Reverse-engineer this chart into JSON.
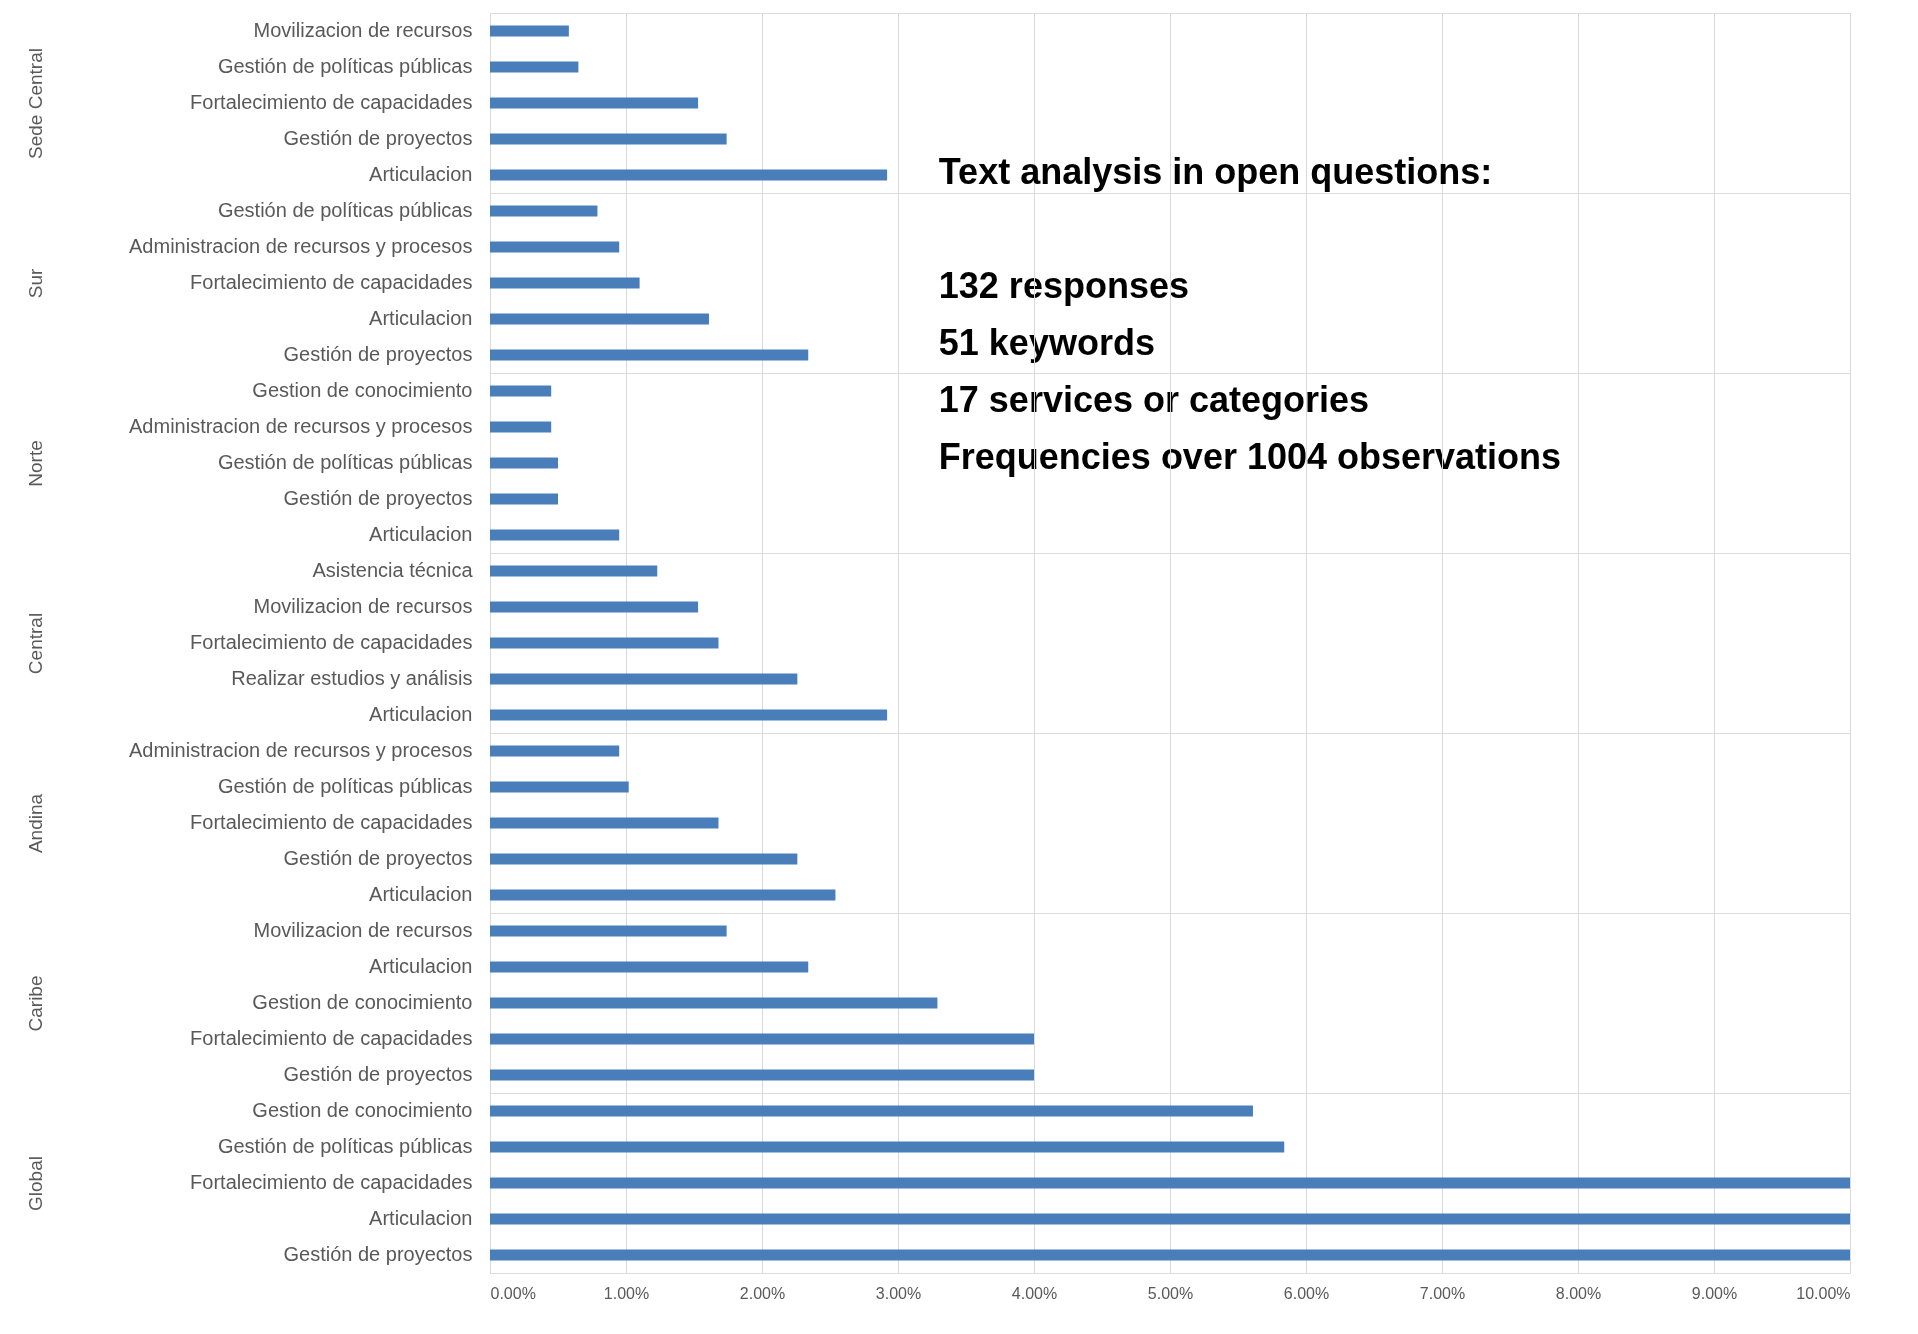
{
  "chart_data": [
    {
      "type": "bar",
      "orientation": "horizontal",
      "ylabel": "Sede Central",
      "categories": [
        "Movilizacion de recursos",
        "Gestión de políticas públicas",
        "Fortalecimiento de capacidades",
        "Gestión de proyectos",
        "Articulacion"
      ],
      "values": [
        0.58,
        0.65,
        1.53,
        1.74,
        2.92
      ],
      "color": "#4a7ebb",
      "xlim": [
        0,
        10
      ],
      "xticks": [
        {
          "value": 0,
          "label": null
        },
        {
          "value": 1,
          "label": null
        },
        {
          "value": 2,
          "label": null
        },
        {
          "value": 3,
          "label": null
        },
        {
          "value": 4,
          "label": null
        },
        {
          "value": 5,
          "label": null
        },
        {
          "value": 6,
          "label": null
        },
        {
          "value": 7,
          "label": null
        },
        {
          "value": 8,
          "label": null
        },
        {
          "value": 9,
          "label": null
        },
        {
          "value": 10,
          "label": null
        }
      ],
      "grid": "x",
      "tick_labels": "y",
      "annotations": [
        "Text analysis in open questions:",
        "132 responses",
        "51 keywords",
        "17 services or categories",
        "Frequencies over 1004 observations"
      ]
    },
    {
      "type": "bar",
      "orientation": "horizontal",
      "ylabel": "Sur",
      "categories": [
        "Gestión de políticas públicas",
        "Administracion de recursos y procesos",
        "Fortalecimiento de capacidades",
        "Articulacion",
        "Gestión de proyectos"
      ],
      "values": [
        0.79,
        0.95,
        1.1,
        1.61,
        2.34
      ],
      "color": "#4a7ebb",
      "xlim": [
        0,
        10
      ],
      "xticks": [
        {
          "value": 0,
          "label": null
        },
        {
          "value": 1,
          "label": null
        },
        {
          "value": 2,
          "label": null
        },
        {
          "value": 3,
          "label": null
        },
        {
          "value": 4,
          "label": null
        },
        {
          "value": 5,
          "label": null
        },
        {
          "value": 6,
          "label": null
        },
        {
          "value": 7,
          "label": null
        },
        {
          "value": 8,
          "label": null
        },
        {
          "value": 9,
          "label": null
        },
        {
          "value": 10,
          "label": null
        }
      ],
      "grid": "x",
      "tick_labels": "y"
    },
    {
      "type": "bar",
      "orientation": "horizontal",
      "ylabel": "Norte",
      "categories": [
        "Gestion de  conocimiento",
        "Administracion de recursos y procesos",
        "Gestión de políticas públicas",
        "Gestión de proyectos",
        "Articulacion"
      ],
      "values": [
        0.45,
        0.45,
        0.5,
        0.5,
        0.95
      ],
      "color": "#4a7ebb",
      "xlim": [
        0,
        10
      ],
      "xticks": [
        {
          "value": 0,
          "label": null
        },
        {
          "value": 1,
          "label": null
        },
        {
          "value": 2,
          "label": null
        },
        {
          "value": 3,
          "label": null
        },
        {
          "value": 4,
          "label": null
        },
        {
          "value": 5,
          "label": null
        },
        {
          "value": 6,
          "label": null
        },
        {
          "value": 7,
          "label": null
        },
        {
          "value": 8,
          "label": null
        },
        {
          "value": 9,
          "label": null
        },
        {
          "value": 10,
          "label": null
        }
      ],
      "grid": "x",
      "tick_labels": "y"
    },
    {
      "type": "bar",
      "orientation": "horizontal",
      "ylabel": "Central",
      "categories": [
        "Asistencia técnica",
        "Movilizacion de recursos",
        "Fortalecimiento de capacidades",
        "Realizar estudios y análisis",
        "Articulacion"
      ],
      "values": [
        1.23,
        1.53,
        1.68,
        2.26,
        2.92
      ],
      "color": "#4a7ebb",
      "xlim": [
        0,
        10
      ],
      "xticks": [
        {
          "value": 0,
          "label": null
        },
        {
          "value": 1,
          "label": null
        },
        {
          "value": 2,
          "label": null
        },
        {
          "value": 3,
          "label": null
        },
        {
          "value": 4,
          "label": null
        },
        {
          "value": 5,
          "label": null
        },
        {
          "value": 6,
          "label": null
        },
        {
          "value": 7,
          "label": null
        },
        {
          "value": 8,
          "label": null
        },
        {
          "value": 9,
          "label": null
        },
        {
          "value": 10,
          "label": null
        }
      ],
      "grid": "x",
      "tick_labels": "y"
    },
    {
      "type": "bar",
      "orientation": "horizontal",
      "ylabel": "Andina",
      "categories": [
        "Administracion de recursos y procesos",
        "Gestión de políticas públicas",
        "Fortalecimiento de capacidades",
        "Gestión de proyectos",
        "Articulacion"
      ],
      "values": [
        0.95,
        1.02,
        1.68,
        2.26,
        2.54
      ],
      "color": "#4a7ebb",
      "xlim": [
        0,
        10
      ],
      "xticks": [
        {
          "value": 0,
          "label": null
        },
        {
          "value": 1,
          "label": null
        },
        {
          "value": 2,
          "label": null
        },
        {
          "value": 3,
          "label": null
        },
        {
          "value": 4,
          "label": null
        },
        {
          "value": 5,
          "label": null
        },
        {
          "value": 6,
          "label": null
        },
        {
          "value": 7,
          "label": null
        },
        {
          "value": 8,
          "label": null
        },
        {
          "value": 9,
          "label": null
        },
        {
          "value": 10,
          "label": null
        }
      ],
      "grid": "x",
      "tick_labels": "y"
    },
    {
      "type": "bar",
      "orientation": "horizontal",
      "ylabel": "Caribe",
      "categories": [
        "Movilizacion de recursos",
        "Articulacion",
        "Gestion de  conocimiento",
        "Fortalecimiento de capacidades",
        "Gestión de proyectos"
      ],
      "values": [
        1.74,
        2.34,
        3.29,
        4.0,
        4.0
      ],
      "color": "#4a7ebb",
      "xlim": [
        0,
        10
      ],
      "xticks": [
        {
          "value": 0,
          "label": null
        },
        {
          "value": 1,
          "label": null
        },
        {
          "value": 2,
          "label": null
        },
        {
          "value": 3,
          "label": null
        },
        {
          "value": 4,
          "label": null
        },
        {
          "value": 5,
          "label": null
        },
        {
          "value": 6,
          "label": null
        },
        {
          "value": 7,
          "label": null
        },
        {
          "value": 8,
          "label": null
        },
        {
          "value": 9,
          "label": null
        },
        {
          "value": 10,
          "label": null
        }
      ],
      "grid": "x",
      "tick_labels": "y"
    },
    {
      "type": "bar",
      "orientation": "horizontal",
      "ylabel": "Global",
      "categories": [
        "Gestion de  conocimiento",
        "Gestión de políticas públicas",
        "Fortalecimiento de capacidades",
        "Articulacion",
        "Gestión de proyectos"
      ],
      "values": [
        5.61,
        5.84,
        10,
        10,
        10
      ],
      "color": "#4a7ebb",
      "xlim": [
        0,
        10
      ],
      "xticks": [
        {
          "value": 0,
          "label": "0.00%"
        },
        {
          "value": 1,
          "label": "1.00%"
        },
        {
          "value": 2,
          "label": "2.00%"
        },
        {
          "value": 3,
          "label": "3.00%"
        },
        {
          "value": 4,
          "label": "4.00%"
        },
        {
          "value": 5,
          "label": "5.00%"
        },
        {
          "value": 6,
          "label": "6.00%"
        },
        {
          "value": 7,
          "label": "7.00%"
        },
        {
          "value": 8,
          "label": "8.00%"
        },
        {
          "value": 9,
          "label": "9.00%"
        },
        {
          "value": 10,
          "label": "10.00%"
        }
      ],
      "grid": "x"
    }
  ]
}
